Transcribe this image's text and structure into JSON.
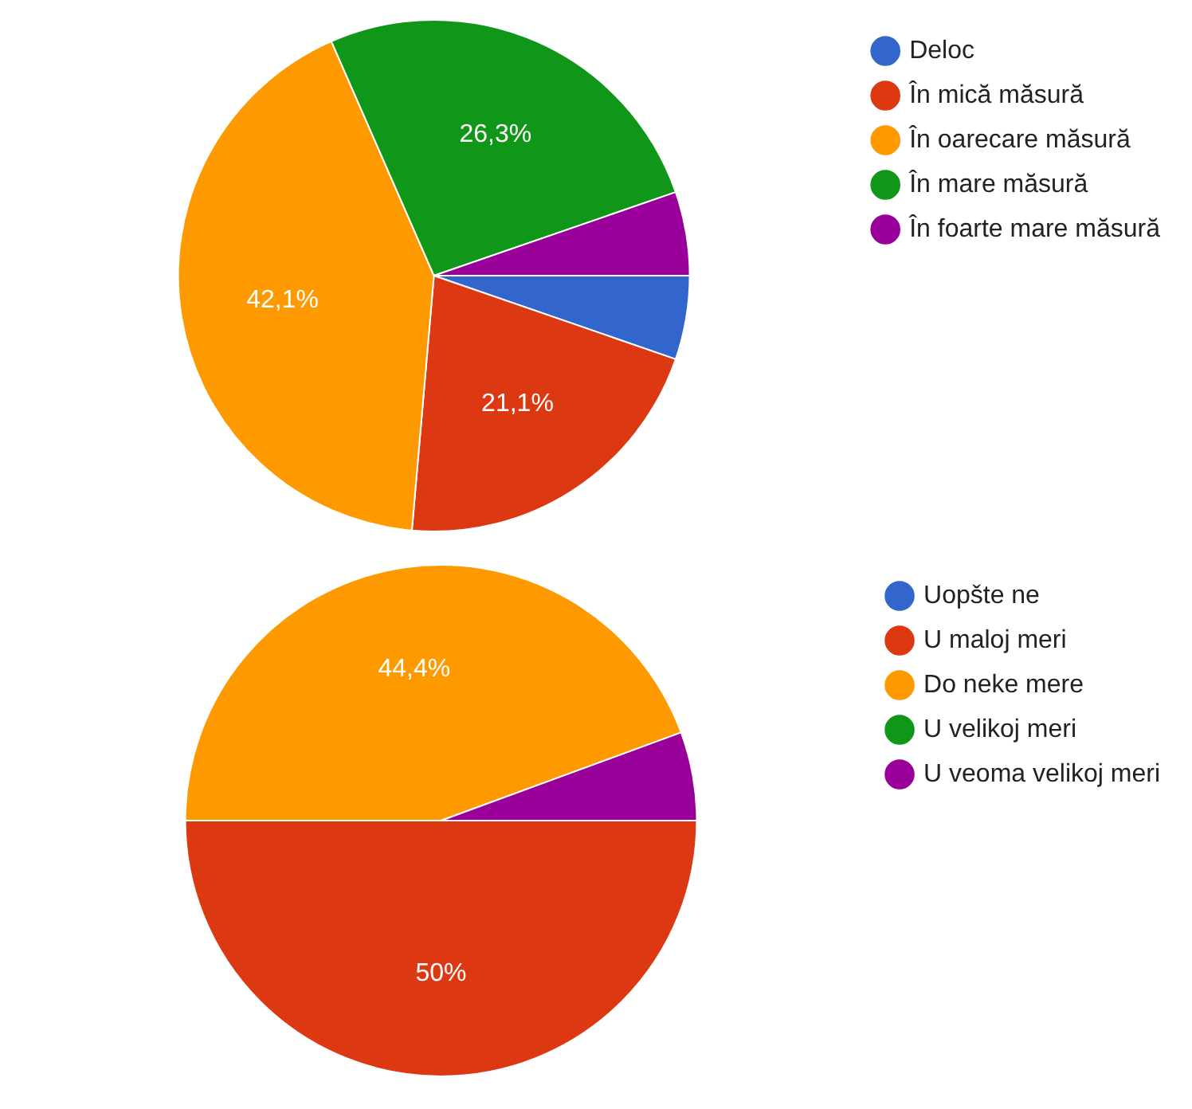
{
  "chart_data": [
    {
      "type": "pie",
      "categories": [
        "Deloc",
        "În mică măsură",
        "În oarecare măsură",
        "În mare măsură",
        "În foarte mare măsură"
      ],
      "values": [
        5.3,
        21.1,
        42.1,
        26.3,
        5.3
      ],
      "value_labels": [
        null,
        "21,1%",
        "42,1%",
        "26,3%",
        null
      ],
      "colors": [
        "#3366cc",
        "#dc3912",
        "#ff9900",
        "#109618",
        "#990099"
      ],
      "legend": "top right"
    },
    {
      "type": "pie",
      "categories": [
        "Uopšte ne",
        "U maloj meri",
        "Do neke mere",
        "U velikoj meri",
        "U veoma velikoj meri"
      ],
      "values": [
        0,
        50,
        44.4,
        0,
        5.6
      ],
      "value_labels": [
        null,
        "50%",
        "44,4%",
        null,
        null
      ],
      "colors": [
        "#3366cc",
        "#dc3912",
        "#ff9900",
        "#109618",
        "#990099"
      ],
      "legend": "top right"
    }
  ]
}
